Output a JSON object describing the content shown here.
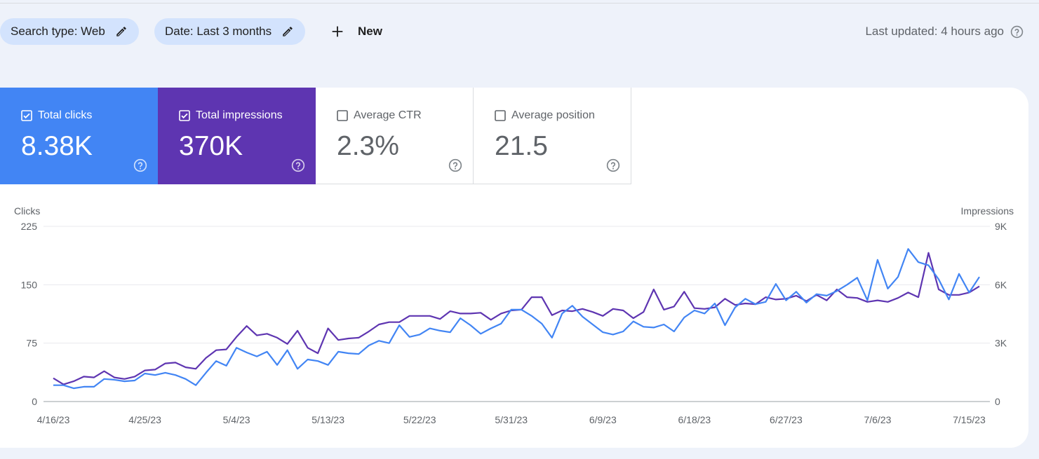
{
  "filters": {
    "search_type": "Search type: Web",
    "date": "Date: Last 3 months",
    "new_label": "New"
  },
  "last_updated": "Last updated: 4 hours ago",
  "metrics": [
    {
      "label": "Total clicks",
      "value": "8.38K",
      "checked": true,
      "color": "#4285f4"
    },
    {
      "label": "Total impressions",
      "value": "370K",
      "checked": true,
      "color": "#5e35b1"
    },
    {
      "label": "Average CTR",
      "value": "2.3%",
      "checked": false
    },
    {
      "label": "Average position",
      "value": "21.5",
      "checked": false
    }
  ],
  "chart_data": {
    "type": "line",
    "x_ticks": [
      "4/16/23",
      "4/25/23",
      "5/4/23",
      "5/13/23",
      "5/22/23",
      "5/31/23",
      "6/9/23",
      "6/18/23",
      "6/27/23",
      "7/6/23",
      "7/15/23"
    ],
    "y_left": {
      "label": "Clicks",
      "ticks": [
        "0",
        "75",
        "150",
        "225"
      ],
      "range": [
        0,
        225
      ]
    },
    "y_right": {
      "label": "Impressions",
      "ticks": [
        "0",
        "3K",
        "6K",
        "9K"
      ],
      "range": [
        0,
        9000
      ]
    },
    "grid": true,
    "series": [
      {
        "name": "Total clicks",
        "axis": "left",
        "color": "#4285f4",
        "values": [
          21,
          21,
          17,
          19,
          19,
          29,
          28,
          26,
          27,
          36,
          34,
          37,
          34,
          29,
          21,
          37,
          52,
          46,
          69,
          63,
          58,
          64,
          47,
          66,
          42,
          54,
          52,
          47,
          64,
          62,
          61,
          72,
          78,
          75,
          98,
          83,
          86,
          94,
          91,
          89,
          107,
          98,
          87,
          94,
          100,
          118,
          118,
          110,
          100,
          82,
          113,
          123,
          109,
          99,
          89,
          86,
          90,
          103,
          96,
          95,
          99,
          90,
          108,
          117,
          113,
          126,
          98,
          121,
          132,
          125,
          128,
          151,
          130,
          141,
          127,
          138,
          136,
          142,
          150,
          159,
          130,
          182,
          145,
          160,
          196,
          179,
          175,
          157,
          131,
          164,
          140,
          160
        ]
      },
      {
        "name": "Total impressions",
        "axis": "right",
        "color": "#5e35b1",
        "values": [
          1200,
          880,
          1040,
          1280,
          1240,
          1560,
          1240,
          1160,
          1280,
          1600,
          1640,
          1960,
          2000,
          1760,
          1680,
          2240,
          2640,
          2680,
          3320,
          3880,
          3400,
          3480,
          3280,
          2960,
          3640,
          2760,
          2480,
          3760,
          3160,
          3240,
          3280,
          3600,
          3960,
          4080,
          4080,
          4400,
          4400,
          4400,
          4240,
          4640,
          4520,
          4520,
          4560,
          4200,
          4520,
          4680,
          4720,
          5360,
          5360,
          4440,
          4680,
          4640,
          4760,
          4600,
          4400,
          4760,
          4680,
          4280,
          4600,
          5760,
          4720,
          4880,
          5640,
          4800,
          4760,
          4840,
          5280,
          4960,
          5040,
          5000,
          5360,
          5240,
          5280,
          5440,
          5160,
          5480,
          5200,
          5760,
          5360,
          5320,
          5120,
          5200,
          5120,
          5320,
          5600,
          5360,
          7640,
          5760,
          5480,
          5480,
          5600,
          5920
        ]
      }
    ]
  }
}
